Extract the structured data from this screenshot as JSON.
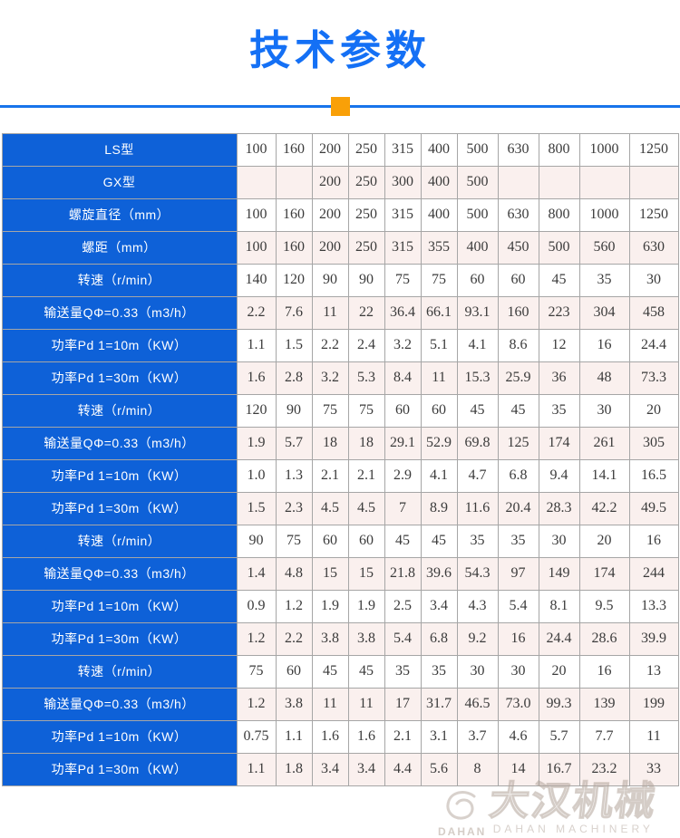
{
  "title": "技术参数",
  "colors": {
    "title_blue": "#1470f5",
    "divider_blue": "#1774eb",
    "accent_orange": "#f9a008",
    "header_blue": "#0e61d8",
    "alt_row_pink": "#faf0ee",
    "border_gray": "#a6a6a6",
    "data_text": "#3b3b3b"
  },
  "watermark": {
    "logo_text": "DAHAN",
    "cn": "大汉机械",
    "en": "DAHAN MACHINERY"
  },
  "chart_data": {
    "type": "table",
    "title": "技术参数",
    "rows": [
      {
        "label": "LS型",
        "values": [
          "100",
          "160",
          "200",
          "250",
          "315",
          "400",
          "500",
          "630",
          "800",
          "1000",
          "1250"
        ]
      },
      {
        "label": "GX型",
        "values": [
          "",
          "",
          "200",
          "250",
          "300",
          "400",
          "500",
          "",
          "",
          "",
          ""
        ]
      },
      {
        "label": "螺旋直径（mm）",
        "values": [
          "100",
          "160",
          "200",
          "250",
          "315",
          "400",
          "500",
          "630",
          "800",
          "1000",
          "1250"
        ]
      },
      {
        "label": "螺距（mm）",
        "values": [
          "100",
          "160",
          "200",
          "250",
          "315",
          "355",
          "400",
          "450",
          "500",
          "560",
          "630"
        ]
      },
      {
        "label": "转速（r/min）",
        "values": [
          "140",
          "120",
          "90",
          "90",
          "75",
          "75",
          "60",
          "60",
          "45",
          "35",
          "30"
        ]
      },
      {
        "label": "输送量QΦ=0.33（m3/h）",
        "values": [
          "2.2",
          "7.6",
          "11",
          "22",
          "36.4",
          "66.1",
          "93.1",
          "160",
          "223",
          "304",
          "458"
        ]
      },
      {
        "label": "功率Pd 1=10m（KW）",
        "values": [
          "1.1",
          "1.5",
          "2.2",
          "2.4",
          "3.2",
          "5.1",
          "4.1",
          "8.6",
          "12",
          "16",
          "24.4"
        ]
      },
      {
        "label": "功率Pd 1=30m（KW）",
        "values": [
          "1.6",
          "2.8",
          "3.2",
          "5.3",
          "8.4",
          "11",
          "15.3",
          "25.9",
          "36",
          "48",
          "73.3"
        ]
      },
      {
        "label": "转速（r/min）",
        "values": [
          "120",
          "90",
          "75",
          "75",
          "60",
          "60",
          "45",
          "45",
          "35",
          "30",
          "20"
        ]
      },
      {
        "label": "输送量QΦ=0.33（m3/h）",
        "values": [
          "1.9",
          "5.7",
          "18",
          "18",
          "29.1",
          "52.9",
          "69.8",
          "125",
          "174",
          "261",
          "305"
        ]
      },
      {
        "label": "功率Pd 1=10m（KW）",
        "values": [
          "1.0",
          "1.3",
          "2.1",
          "2.1",
          "2.9",
          "4.1",
          "4.7",
          "6.8",
          "9.4",
          "14.1",
          "16.5"
        ]
      },
      {
        "label": "功率Pd 1=30m（KW）",
        "values": [
          "1.5",
          "2.3",
          "4.5",
          "4.5",
          "7",
          "8.9",
          "11.6",
          "20.4",
          "28.3",
          "42.2",
          "49.5"
        ]
      },
      {
        "label": "转速（r/min）",
        "values": [
          "90",
          "75",
          "60",
          "60",
          "45",
          "45",
          "35",
          "35",
          "30",
          "20",
          "16"
        ]
      },
      {
        "label": "输送量QΦ=0.33（m3/h）",
        "values": [
          "1.4",
          "4.8",
          "15",
          "15",
          "21.8",
          "39.6",
          "54.3",
          "97",
          "149",
          "174",
          "244"
        ]
      },
      {
        "label": "功率Pd 1=10m（KW）",
        "values": [
          "0.9",
          "1.2",
          "1.9",
          "1.9",
          "2.5",
          "3.4",
          "4.3",
          "5.4",
          "8.1",
          "9.5",
          "13.3"
        ]
      },
      {
        "label": "功率Pd 1=30m（KW）",
        "values": [
          "1.2",
          "2.2",
          "3.8",
          "3.8",
          "5.4",
          "6.8",
          "9.2",
          "16",
          "24.4",
          "28.6",
          "39.9"
        ]
      },
      {
        "label": "转速（r/min）",
        "values": [
          "75",
          "60",
          "45",
          "45",
          "35",
          "35",
          "30",
          "30",
          "20",
          "16",
          "13"
        ]
      },
      {
        "label": "输送量QΦ=0.33（m3/h）",
        "values": [
          "1.2",
          "3.8",
          "11",
          "11",
          "17",
          "31.7",
          "46.5",
          "73.0",
          "99.3",
          "139",
          "199"
        ]
      },
      {
        "label": "功率Pd 1=10m（KW）",
        "values": [
          "0.75",
          "1.1",
          "1.6",
          "1.6",
          "2.1",
          "3.1",
          "3.7",
          "4.6",
          "5.7",
          "7.7",
          "11"
        ]
      },
      {
        "label": "功率Pd 1=30m（KW）",
        "values": [
          "1.1",
          "1.8",
          "3.4",
          "3.4",
          "4.4",
          "5.6",
          "8",
          "14",
          "16.7",
          "23.2",
          "33"
        ]
      }
    ]
  }
}
